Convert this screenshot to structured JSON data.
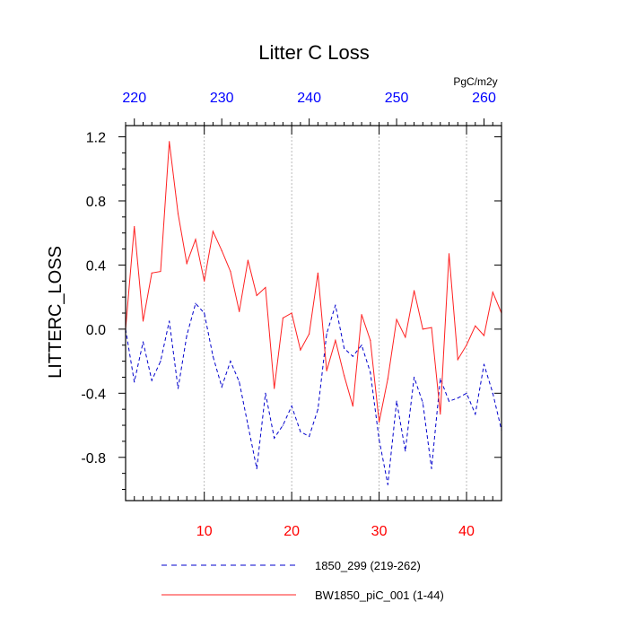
{
  "chart_data": {
    "type": "line",
    "title": "Litter C Loss",
    "ylabel": "LITTERC_LOSS",
    "units": "PgC/m2y",
    "ylim": [
      -1.07,
      1.27
    ],
    "xlim": [
      1,
      44
    ],
    "yticks": [
      1.2,
      0.8,
      0.4,
      0.0,
      -0.4,
      -0.8
    ],
    "ytick_labels": [
      "1.2",
      "0.8",
      "0.4",
      "0.0",
      "-0.4",
      "-0.8"
    ],
    "xticks_bottom": [
      10,
      20,
      30,
      40
    ],
    "xtick_labels_bottom": [
      "10",
      "20",
      "30",
      "40"
    ],
    "xticks_top": [
      2,
      12,
      22,
      32,
      42
    ],
    "xtick_labels_top": [
      "220",
      "230",
      "240",
      "250",
      "260"
    ],
    "x": [
      1,
      2,
      3,
      4,
      5,
      6,
      7,
      8,
      9,
      10,
      11,
      12,
      13,
      14,
      15,
      16,
      17,
      18,
      19,
      20,
      21,
      22,
      23,
      24,
      25,
      26,
      27,
      28,
      29,
      30,
      31,
      32,
      33,
      34,
      35,
      36,
      37,
      38,
      39,
      40,
      41,
      42,
      43,
      44
    ],
    "series": [
      {
        "name": "1850_299 (219-262)",
        "style": "dashed",
        "color": "#0000cc",
        "values": [
          0.0,
          -0.33,
          -0.08,
          -0.32,
          -0.2,
          0.05,
          -0.37,
          -0.04,
          0.16,
          0.1,
          -0.17,
          -0.36,
          -0.2,
          -0.33,
          -0.6,
          -0.87,
          -0.4,
          -0.68,
          -0.6,
          -0.48,
          -0.64,
          -0.67,
          -0.5,
          -0.03,
          0.15,
          -0.12,
          -0.17,
          -0.1,
          -0.27,
          -0.69,
          -0.97,
          -0.45,
          -0.76,
          -0.3,
          -0.46,
          -0.87,
          -0.31,
          -0.45,
          -0.43,
          -0.4,
          -0.53,
          -0.22,
          -0.4,
          -0.63
        ]
      },
      {
        "name": "BW1850_piC_001 (1-44)",
        "style": "solid",
        "color": "#ff2020",
        "values": [
          0.0,
          0.64,
          0.05,
          0.35,
          0.36,
          1.17,
          0.72,
          0.41,
          0.56,
          0.3,
          0.61,
          0.49,
          0.36,
          0.11,
          0.43,
          0.21,
          0.26,
          -0.37,
          0.07,
          0.1,
          -0.13,
          -0.03,
          0.35,
          -0.26,
          -0.07,
          -0.29,
          -0.48,
          0.09,
          -0.07,
          -0.58,
          -0.31,
          0.06,
          -0.05,
          0.24,
          0.0,
          0.01,
          -0.53,
          0.47,
          -0.19,
          -0.1,
          0.02,
          -0.04,
          0.23,
          0.1
        ]
      }
    ],
    "legend_position": "bottom"
  }
}
